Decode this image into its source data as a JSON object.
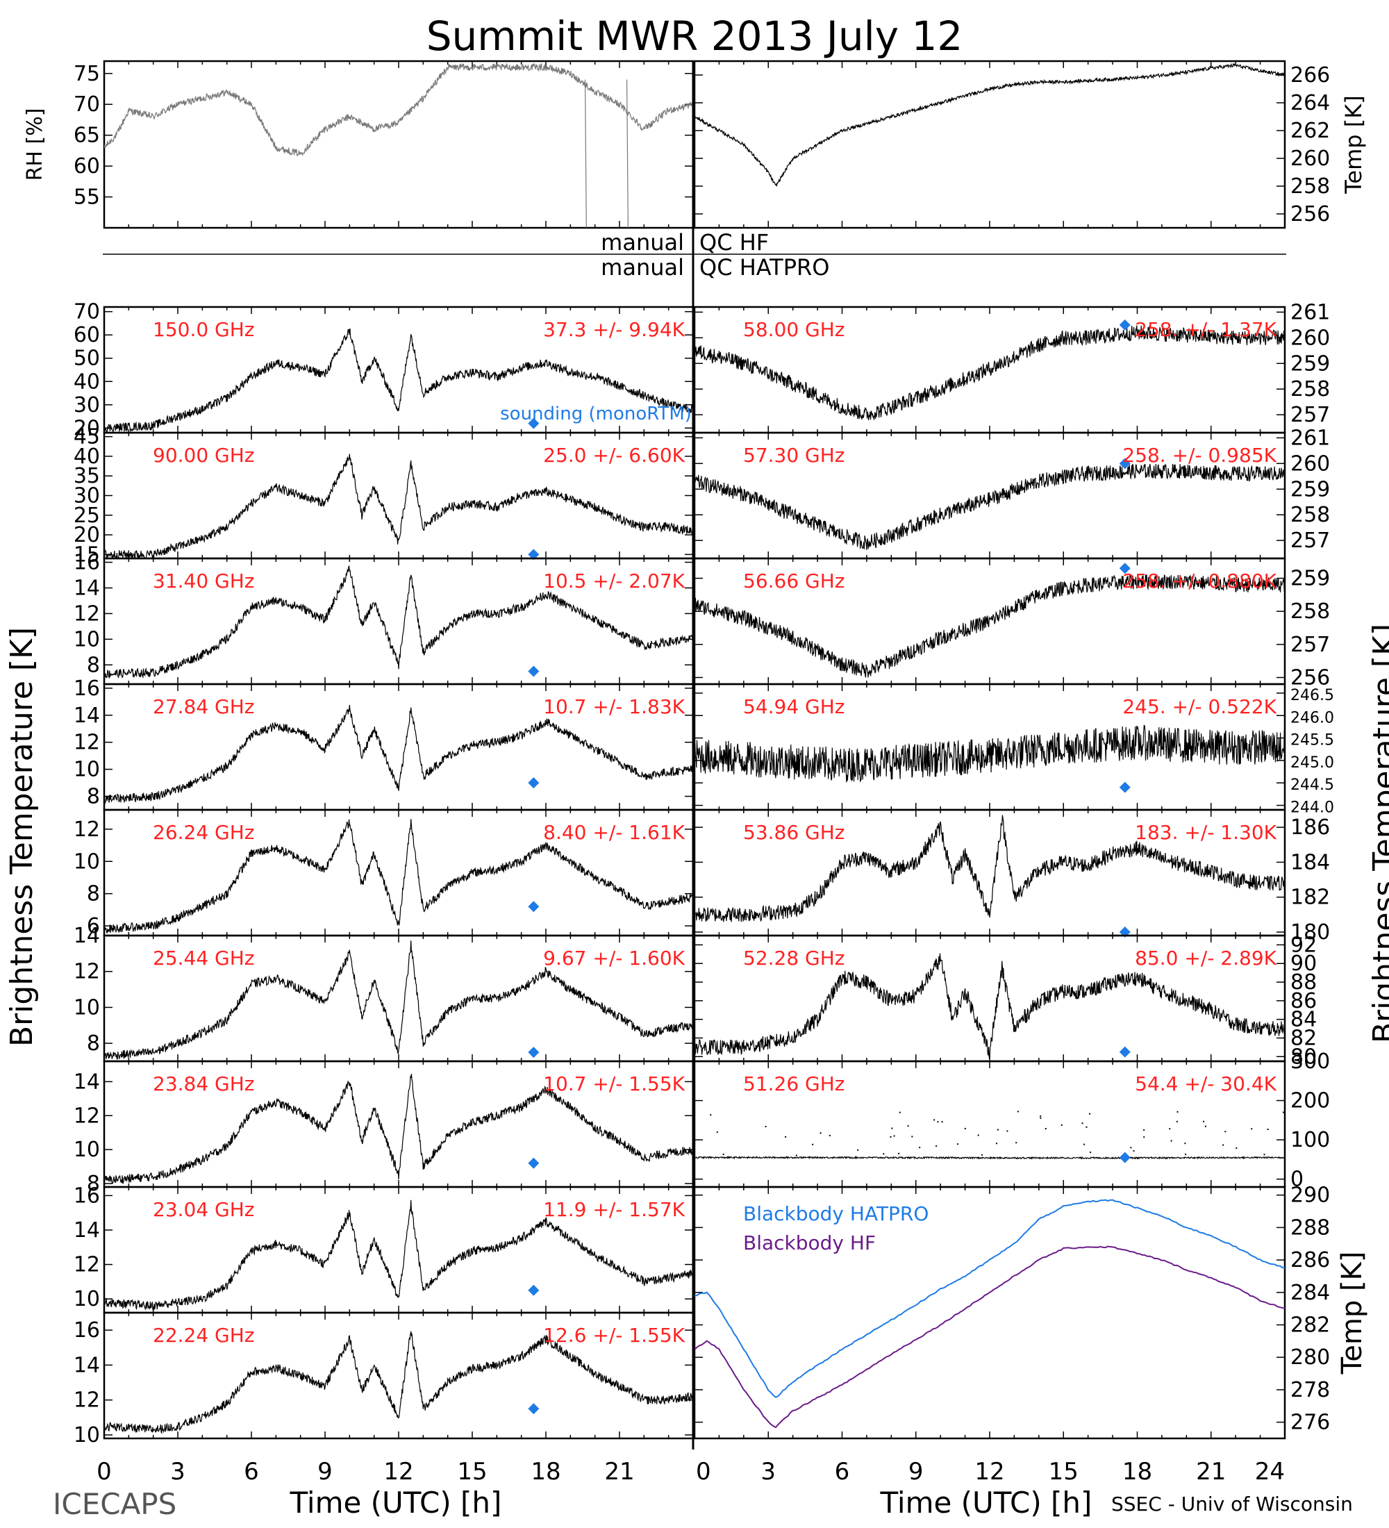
{
  "title": "Summit MWR 2013 July 12",
  "footer_left": "ICECAPS",
  "footer_right": "SSEC - Univ of Wisconsin",
  "xlabel": "Time (UTC) [h]",
  "ylabel_left": "Brightness Temperature [K]",
  "ylabel_right": "Brightness Temperature [K]",
  "colors": {
    "red": "#ff2222",
    "blue": "#1e7be6",
    "purple": "#6a1b8a",
    "black": "#000000",
    "gray": "#777777"
  },
  "qc": {
    "left1": "manual",
    "right1": "QC HF",
    "left2": "manual",
    "right2": "QC HATPRO"
  },
  "x_ticks_left": [
    "0",
    "3",
    "6",
    "9",
    "12",
    "15",
    "18",
    "21"
  ],
  "x_ticks_right": [
    "0",
    "3",
    "6",
    "9",
    "12",
    "15",
    "18",
    "21",
    "24"
  ],
  "chart_data": [
    {
      "id": "rh",
      "type": "scatter",
      "ylabel": "RH [%]",
      "ylim": [
        50,
        77
      ],
      "y_ticks": [
        "55",
        "60",
        "65",
        "70",
        "75"
      ],
      "x": [
        0,
        0.5,
        1,
        2,
        3,
        4,
        5,
        6,
        7,
        8,
        9,
        10,
        11,
        12,
        13,
        14,
        15,
        16,
        17,
        18,
        19,
        20,
        21,
        22,
        23,
        24
      ],
      "values": [
        63,
        65,
        69,
        68,
        70,
        71,
        72,
        70,
        63,
        62,
        66,
        68,
        66,
        67,
        71,
        76,
        76,
        76,
        76,
        76,
        75,
        72,
        70,
        66,
        69,
        70
      ]
    },
    {
      "id": "temp",
      "type": "line",
      "ylabel": "Temp [K]",
      "ylim": [
        255,
        267
      ],
      "y_ticks": [
        "256",
        "258",
        "260",
        "262",
        "264",
        "266"
      ],
      "x": [
        0,
        1,
        2,
        3,
        3.3,
        4,
        5,
        6,
        7,
        8,
        9,
        10,
        11,
        12,
        13,
        14,
        15,
        16,
        17,
        18,
        19,
        20,
        21,
        22,
        23,
        24
      ],
      "values": [
        263,
        262,
        261,
        259,
        258,
        260,
        261,
        262,
        262.5,
        263,
        263.5,
        264,
        264.5,
        265,
        265.3,
        265.5,
        265.5,
        265.6,
        265.7,
        265.8,
        266,
        266.2,
        266.5,
        266.7,
        266.3,
        266
      ]
    },
    {
      "id": "f150",
      "type": "scatter",
      "freq": "150.0 GHz",
      "stat": "37.3 +/- 9.94K",
      "ylim": [
        18,
        72
      ],
      "y_ticks": [
        "20",
        "30",
        "40",
        "50",
        "60",
        "70"
      ],
      "x": [
        0,
        2,
        3,
        4,
        5,
        6,
        7,
        8,
        9,
        10,
        10.5,
        11,
        12,
        12.5,
        13,
        14,
        15,
        16,
        17,
        18,
        19,
        20,
        21,
        22,
        23,
        24
      ],
      "values": [
        20,
        21,
        25,
        28,
        33,
        42,
        48,
        46,
        43,
        62,
        40,
        50,
        28,
        60,
        35,
        42,
        44,
        42,
        46,
        48,
        44,
        42,
        38,
        34,
        30,
        28
      ],
      "sounding": {
        "x": 17.5,
        "y": 22
      },
      "note": "sounding (monoRTM)"
    },
    {
      "id": "f90",
      "type": "scatter",
      "freq": "90.00 GHz",
      "stat": "25.0 +/- 6.60K",
      "ylim": [
        14,
        46
      ],
      "y_ticks": [
        "15",
        "20",
        "25",
        "30",
        "35",
        "40",
        "45"
      ],
      "x": [
        0,
        2,
        3,
        4,
        5,
        6,
        7,
        8,
        9,
        10,
        10.5,
        11,
        12,
        12.5,
        13,
        14,
        15,
        16,
        17,
        18,
        19,
        20,
        21,
        22,
        23,
        24
      ],
      "values": [
        15,
        15,
        17,
        19,
        22,
        28,
        32,
        30,
        28,
        40,
        25,
        32,
        18,
        38,
        22,
        27,
        28,
        27,
        30,
        31,
        29,
        27,
        24,
        22,
        22,
        21
      ],
      "sounding": {
        "x": 17.5,
        "y": 15
      }
    },
    {
      "id": "f3140",
      "type": "scatter",
      "freq": "31.40 GHz",
      "stat": "10.5 +/- 2.07K",
      "ylim": [
        6.5,
        16.3
      ],
      "y_ticks": [
        "8",
        "10",
        "12",
        "14",
        "16"
      ],
      "x": [
        0,
        2,
        3,
        4,
        5,
        6,
        7,
        8,
        9,
        10,
        10.5,
        11,
        12,
        12.5,
        13,
        14,
        15,
        16,
        17,
        18,
        19,
        20,
        21,
        22,
        23,
        24
      ],
      "values": [
        7.3,
        7.4,
        8,
        8.8,
        10,
        12.5,
        13,
        12.5,
        11.5,
        15.5,
        11,
        13,
        8,
        15,
        9,
        11,
        12,
        12,
        12.5,
        13.5,
        12.5,
        11.5,
        10.5,
        9.5,
        9.8,
        10
      ],
      "sounding": {
        "x": 17.5,
        "y": 7.5
      }
    },
    {
      "id": "f2784",
      "type": "scatter",
      "freq": "27.84 GHz",
      "stat": "10.7 +/- 1.83K",
      "ylim": [
        7,
        16.3
      ],
      "y_ticks": [
        "8",
        "10",
        "12",
        "14",
        "16"
      ],
      "x": [
        0,
        2,
        3,
        4,
        5,
        6,
        7,
        8,
        9,
        10,
        10.5,
        11,
        12,
        12.5,
        13,
        14,
        15,
        16,
        17,
        18,
        19,
        20,
        21,
        22,
        23,
        24
      ],
      "values": [
        7.8,
        8,
        8.5,
        9.3,
        10.2,
        12.5,
        13.2,
        12.8,
        11.5,
        14.5,
        11,
        13,
        8.5,
        14.5,
        9.5,
        11,
        11.8,
        12,
        12.5,
        13.5,
        12.5,
        11.5,
        10.5,
        9.5,
        9.8,
        10
      ],
      "sounding": {
        "x": 17.5,
        "y": 9
      }
    },
    {
      "id": "f2624",
      "type": "scatter",
      "freq": "26.24 GHz",
      "stat": "8.40 +/- 1.61K",
      "ylim": [
        5.4,
        13.2
      ],
      "y_ticks": [
        "6",
        "8",
        "10",
        "12"
      ],
      "x": [
        0,
        2,
        3,
        4,
        5,
        6,
        7,
        8,
        9,
        10,
        10.5,
        11,
        12,
        12.5,
        13,
        14,
        15,
        16,
        17,
        18,
        19,
        20,
        21,
        22,
        23,
        24
      ],
      "values": [
        5.8,
        6,
        6.5,
        7.2,
        8,
        10.5,
        10.8,
        10.2,
        9.5,
        12.5,
        8.5,
        10.5,
        6,
        12.5,
        7,
        8.5,
        9.3,
        9.5,
        10,
        11,
        10,
        9,
        8.2,
        7.2,
        7.5,
        7.8
      ],
      "sounding": {
        "x": 17.5,
        "y": 7.2
      }
    },
    {
      "id": "f2544",
      "type": "scatter",
      "freq": "25.44 GHz",
      "stat": "9.67 +/- 1.60K",
      "ylim": [
        7,
        14
      ],
      "y_ticks": [
        "8",
        "10",
        "12",
        "14"
      ],
      "x": [
        0,
        2,
        3,
        4,
        5,
        6,
        7,
        8,
        9,
        10,
        10.5,
        11,
        12,
        12.5,
        13,
        14,
        15,
        16,
        17,
        18,
        19,
        20,
        21,
        22,
        23,
        24
      ],
      "values": [
        7.3,
        7.5,
        8,
        8.6,
        9.3,
        11.3,
        11.6,
        11,
        10.3,
        13,
        9.5,
        11.5,
        7.5,
        13.5,
        8,
        9.8,
        10.5,
        10.5,
        11,
        12,
        11,
        10.2,
        9.5,
        8.5,
        8.8,
        9
      ],
      "sounding": {
        "x": 17.5,
        "y": 7.5
      }
    },
    {
      "id": "f2384",
      "type": "scatter",
      "freq": "23.84 GHz",
      "stat": "10.7 +/- 1.55K",
      "ylim": [
        7.8,
        15.2
      ],
      "y_ticks": [
        "8",
        "10",
        "12",
        "14"
      ],
      "x": [
        0,
        2,
        3,
        4,
        5,
        6,
        7,
        8,
        9,
        10,
        10.5,
        11,
        12,
        12.5,
        13,
        14,
        15,
        16,
        17,
        18,
        19,
        20,
        21,
        22,
        23,
        24
      ],
      "values": [
        8.2,
        8.4,
        8.8,
        9.4,
        10.2,
        12.2,
        12.8,
        12.2,
        11.2,
        14,
        10.5,
        12.5,
        8.5,
        14.5,
        9,
        10.8,
        11.6,
        12,
        12.5,
        13.5,
        12.5,
        11.3,
        10.5,
        9.5,
        9.8,
        10
      ],
      "sounding": {
        "x": 17.5,
        "y": 9.2
      }
    },
    {
      "id": "f2304",
      "type": "scatter",
      "freq": "23.04 GHz",
      "stat": "11.9 +/- 1.57K",
      "ylim": [
        9.2,
        16.5
      ],
      "y_ticks": [
        "10",
        "12",
        "14",
        "16"
      ],
      "x": [
        0,
        2,
        3,
        4,
        5,
        6,
        7,
        8,
        9,
        10,
        10.5,
        11,
        12,
        12.5,
        13,
        14,
        15,
        16,
        17,
        18,
        19,
        20,
        21,
        22,
        23,
        24
      ],
      "values": [
        9.8,
        9.6,
        9.8,
        10,
        10.8,
        12.8,
        13.2,
        12.8,
        12,
        15,
        11.5,
        13.5,
        10,
        15.5,
        10.5,
        12,
        12.8,
        13,
        13.5,
        14.5,
        13.5,
        12.5,
        11.8,
        11,
        11.2,
        11.5
      ],
      "sounding": {
        "x": 17.5,
        "y": 10.5
      }
    },
    {
      "id": "f2224",
      "type": "scatter",
      "freq": "22.24 GHz",
      "stat": "12.6 +/- 1.55K",
      "ylim": [
        9.8,
        17
      ],
      "y_ticks": [
        "10",
        "12",
        "14",
        "16"
      ],
      "x": [
        0,
        2,
        3,
        4,
        5,
        6,
        7,
        8,
        9,
        10,
        10.5,
        11,
        12,
        12.5,
        13,
        14,
        15,
        16,
        17,
        18,
        19,
        20,
        21,
        22,
        23,
        24
      ],
      "values": [
        10.5,
        10.3,
        10.5,
        11,
        11.8,
        13.6,
        13.8,
        13.4,
        12.8,
        15.5,
        12.5,
        14,
        11,
        16,
        11.5,
        13,
        13.8,
        14,
        14.5,
        15.5,
        14.5,
        13.5,
        12.8,
        12,
        12,
        12.2
      ],
      "sounding": {
        "x": 17.5,
        "y": 11.5
      }
    },
    {
      "id": "f5800",
      "type": "scatter",
      "freq": "58.00 GHz",
      "stat": "258. +/- 1.37K",
      "ylim": [
        256.3,
        261.2
      ],
      "y_ticks": [
        "257",
        "258",
        "259",
        "260",
        "261"
      ],
      "x": [
        0,
        2,
        4,
        6,
        7,
        8,
        10,
        12,
        14,
        15,
        16,
        18,
        20,
        22,
        24
      ],
      "values": [
        259.5,
        259,
        258.2,
        257.3,
        257,
        257.3,
        258,
        258.8,
        259.7,
        260,
        260,
        260.2,
        260.1,
        260,
        260
      ],
      "sounding": {
        "x": 17.5,
        "y": 260.5
      }
    },
    {
      "id": "f5730",
      "type": "scatter",
      "freq": "57.30 GHz",
      "stat": "258. +/- 0.985K",
      "ylim": [
        256.3,
        261.2
      ],
      "y_ticks": [
        "257",
        "258",
        "259",
        "260",
        "261"
      ],
      "x": [
        0,
        2,
        4,
        6,
        7,
        8,
        10,
        12,
        14,
        15,
        16,
        18,
        20,
        22,
        24
      ],
      "values": [
        259.3,
        258.8,
        258,
        257.2,
        256.9,
        257.2,
        258,
        258.6,
        259.3,
        259.5,
        259.6,
        259.7,
        259.7,
        259.6,
        259.6
      ],
      "sounding": {
        "x": 17.5,
        "y": 260
      }
    },
    {
      "id": "f5666",
      "type": "scatter",
      "freq": "56.66 GHz",
      "stat": "258. +/- 0.880K",
      "ylim": [
        255.8,
        259.6
      ],
      "y_ticks": [
        "256",
        "257",
        "258",
        "259"
      ],
      "x": [
        0,
        2,
        4,
        6,
        7,
        8,
        10,
        12,
        14,
        15,
        16,
        18,
        20,
        22,
        24
      ],
      "values": [
        258.2,
        257.8,
        257.2,
        256.4,
        256.2,
        256.5,
        257.2,
        257.7,
        258.5,
        258.7,
        258.8,
        258.9,
        258.9,
        258.8,
        258.8
      ],
      "sounding": {
        "x": 17.5,
        "y": 259.3
      }
    },
    {
      "id": "f5494",
      "type": "scatter",
      "freq": "54.94 GHz",
      "stat": "245. +/- 0.522K",
      "ylim": [
        243.9,
        246.7
      ],
      "y_ticks": [
        "244.0",
        "244.5",
        "245.0",
        "245.5",
        "246.0",
        "246.5"
      ],
      "x": [
        0,
        3,
        6,
        9,
        12,
        15,
        18,
        21,
        24
      ],
      "values": [
        245.1,
        245.0,
        244.9,
        245.0,
        245.1,
        245.3,
        245.4,
        245.3,
        245.3
      ],
      "sounding": {
        "x": 17.5,
        "y": 244.4
      }
    },
    {
      "id": "f5386",
      "type": "scatter",
      "freq": "53.86 GHz",
      "stat": "183. +/- 1.30K",
      "ylim": [
        179.8,
        187
      ],
      "y_ticks": [
        "180",
        "182",
        "184",
        "186"
      ],
      "x": [
        0,
        2,
        4,
        5,
        6,
        7,
        8,
        9,
        10,
        10.5,
        11,
        12,
        12.5,
        13,
        14,
        15,
        16,
        17,
        18,
        19,
        20,
        21,
        22,
        23,
        24
      ],
      "values": [
        181,
        181,
        181.2,
        182,
        184,
        184.3,
        183.5,
        184,
        186,
        183,
        184.5,
        181,
        186.5,
        182,
        183.5,
        184,
        183.8,
        184.5,
        184.8,
        184.2,
        183.8,
        183.5,
        183,
        182.8,
        182.8
      ],
      "sounding": {
        "x": 17.5,
        "y": 180
      }
    },
    {
      "id": "f5228",
      "type": "scatter",
      "freq": "52.28 GHz",
      "stat": "85.0 +/- 2.89K",
      "ylim": [
        79.5,
        93
      ],
      "y_ticks": [
        "80",
        "82",
        "84",
        "86",
        "88",
        "90",
        "92"
      ],
      "x": [
        0,
        2,
        4,
        5,
        6,
        7,
        8,
        9,
        10,
        10.5,
        11,
        12,
        12.5,
        13,
        14,
        15,
        16,
        17,
        18,
        19,
        20,
        21,
        22,
        23,
        24
      ],
      "values": [
        81,
        81,
        82,
        84,
        88.5,
        88,
        86,
        86.5,
        90.5,
        84,
        87,
        80.5,
        89.5,
        83,
        86,
        87,
        87,
        88,
        88.5,
        87,
        86,
        85,
        83.5,
        83,
        83
      ],
      "sounding": {
        "x": 17.5,
        "y": 80.5
      }
    },
    {
      "id": "f5126",
      "type": "scatter",
      "freq": "51.26 GHz",
      "stat": "54.4 +/- 30.4K",
      "ylim": [
        -20,
        300
      ],
      "y_ticks": [
        "0",
        "100",
        "200",
        "300"
      ],
      "x": [
        0,
        6,
        12,
        18,
        24
      ],
      "values": [
        55,
        55,
        54,
        54,
        55
      ],
      "sounding": {
        "x": 17.5,
        "y": 55
      }
    },
    {
      "id": "bb",
      "type": "line",
      "ylabel": "Temp [K]",
      "ylim": [
        275,
        290.5
      ],
      "y_ticks": [
        "276",
        "278",
        "280",
        "282",
        "284",
        "286",
        "288",
        "290"
      ],
      "series": [
        {
          "name": "Blackbody HATPRO",
          "x": [
            0,
            0.5,
            1,
            2,
            3,
            3.3,
            4,
            6,
            8,
            10,
            11,
            12,
            13,
            14,
            15,
            16,
            17,
            18,
            19,
            20,
            21,
            22,
            23,
            24
          ],
          "values": [
            283.8,
            284,
            283,
            280.5,
            278,
            277.5,
            278.5,
            280.5,
            282.3,
            284.2,
            285,
            286,
            287,
            288.5,
            289.3,
            289.6,
            289.7,
            289.2,
            288.7,
            288,
            287.5,
            286.8,
            286,
            285.5
          ]
        },
        {
          "name": "Blackbody HF",
          "x": [
            0,
            0.5,
            1,
            2,
            3,
            3.3,
            4,
            6,
            8,
            10,
            11,
            12,
            13,
            14,
            15,
            16,
            17,
            18,
            19,
            20,
            21,
            22,
            23,
            24
          ],
          "values": [
            280.5,
            281,
            280.5,
            278,
            276,
            275.7,
            276.7,
            278.3,
            280.2,
            282,
            283,
            284,
            285,
            286,
            286.7,
            286.8,
            286.8,
            286.4,
            286,
            285.4,
            284.9,
            284.3,
            283.5,
            283
          ]
        }
      ]
    }
  ]
}
